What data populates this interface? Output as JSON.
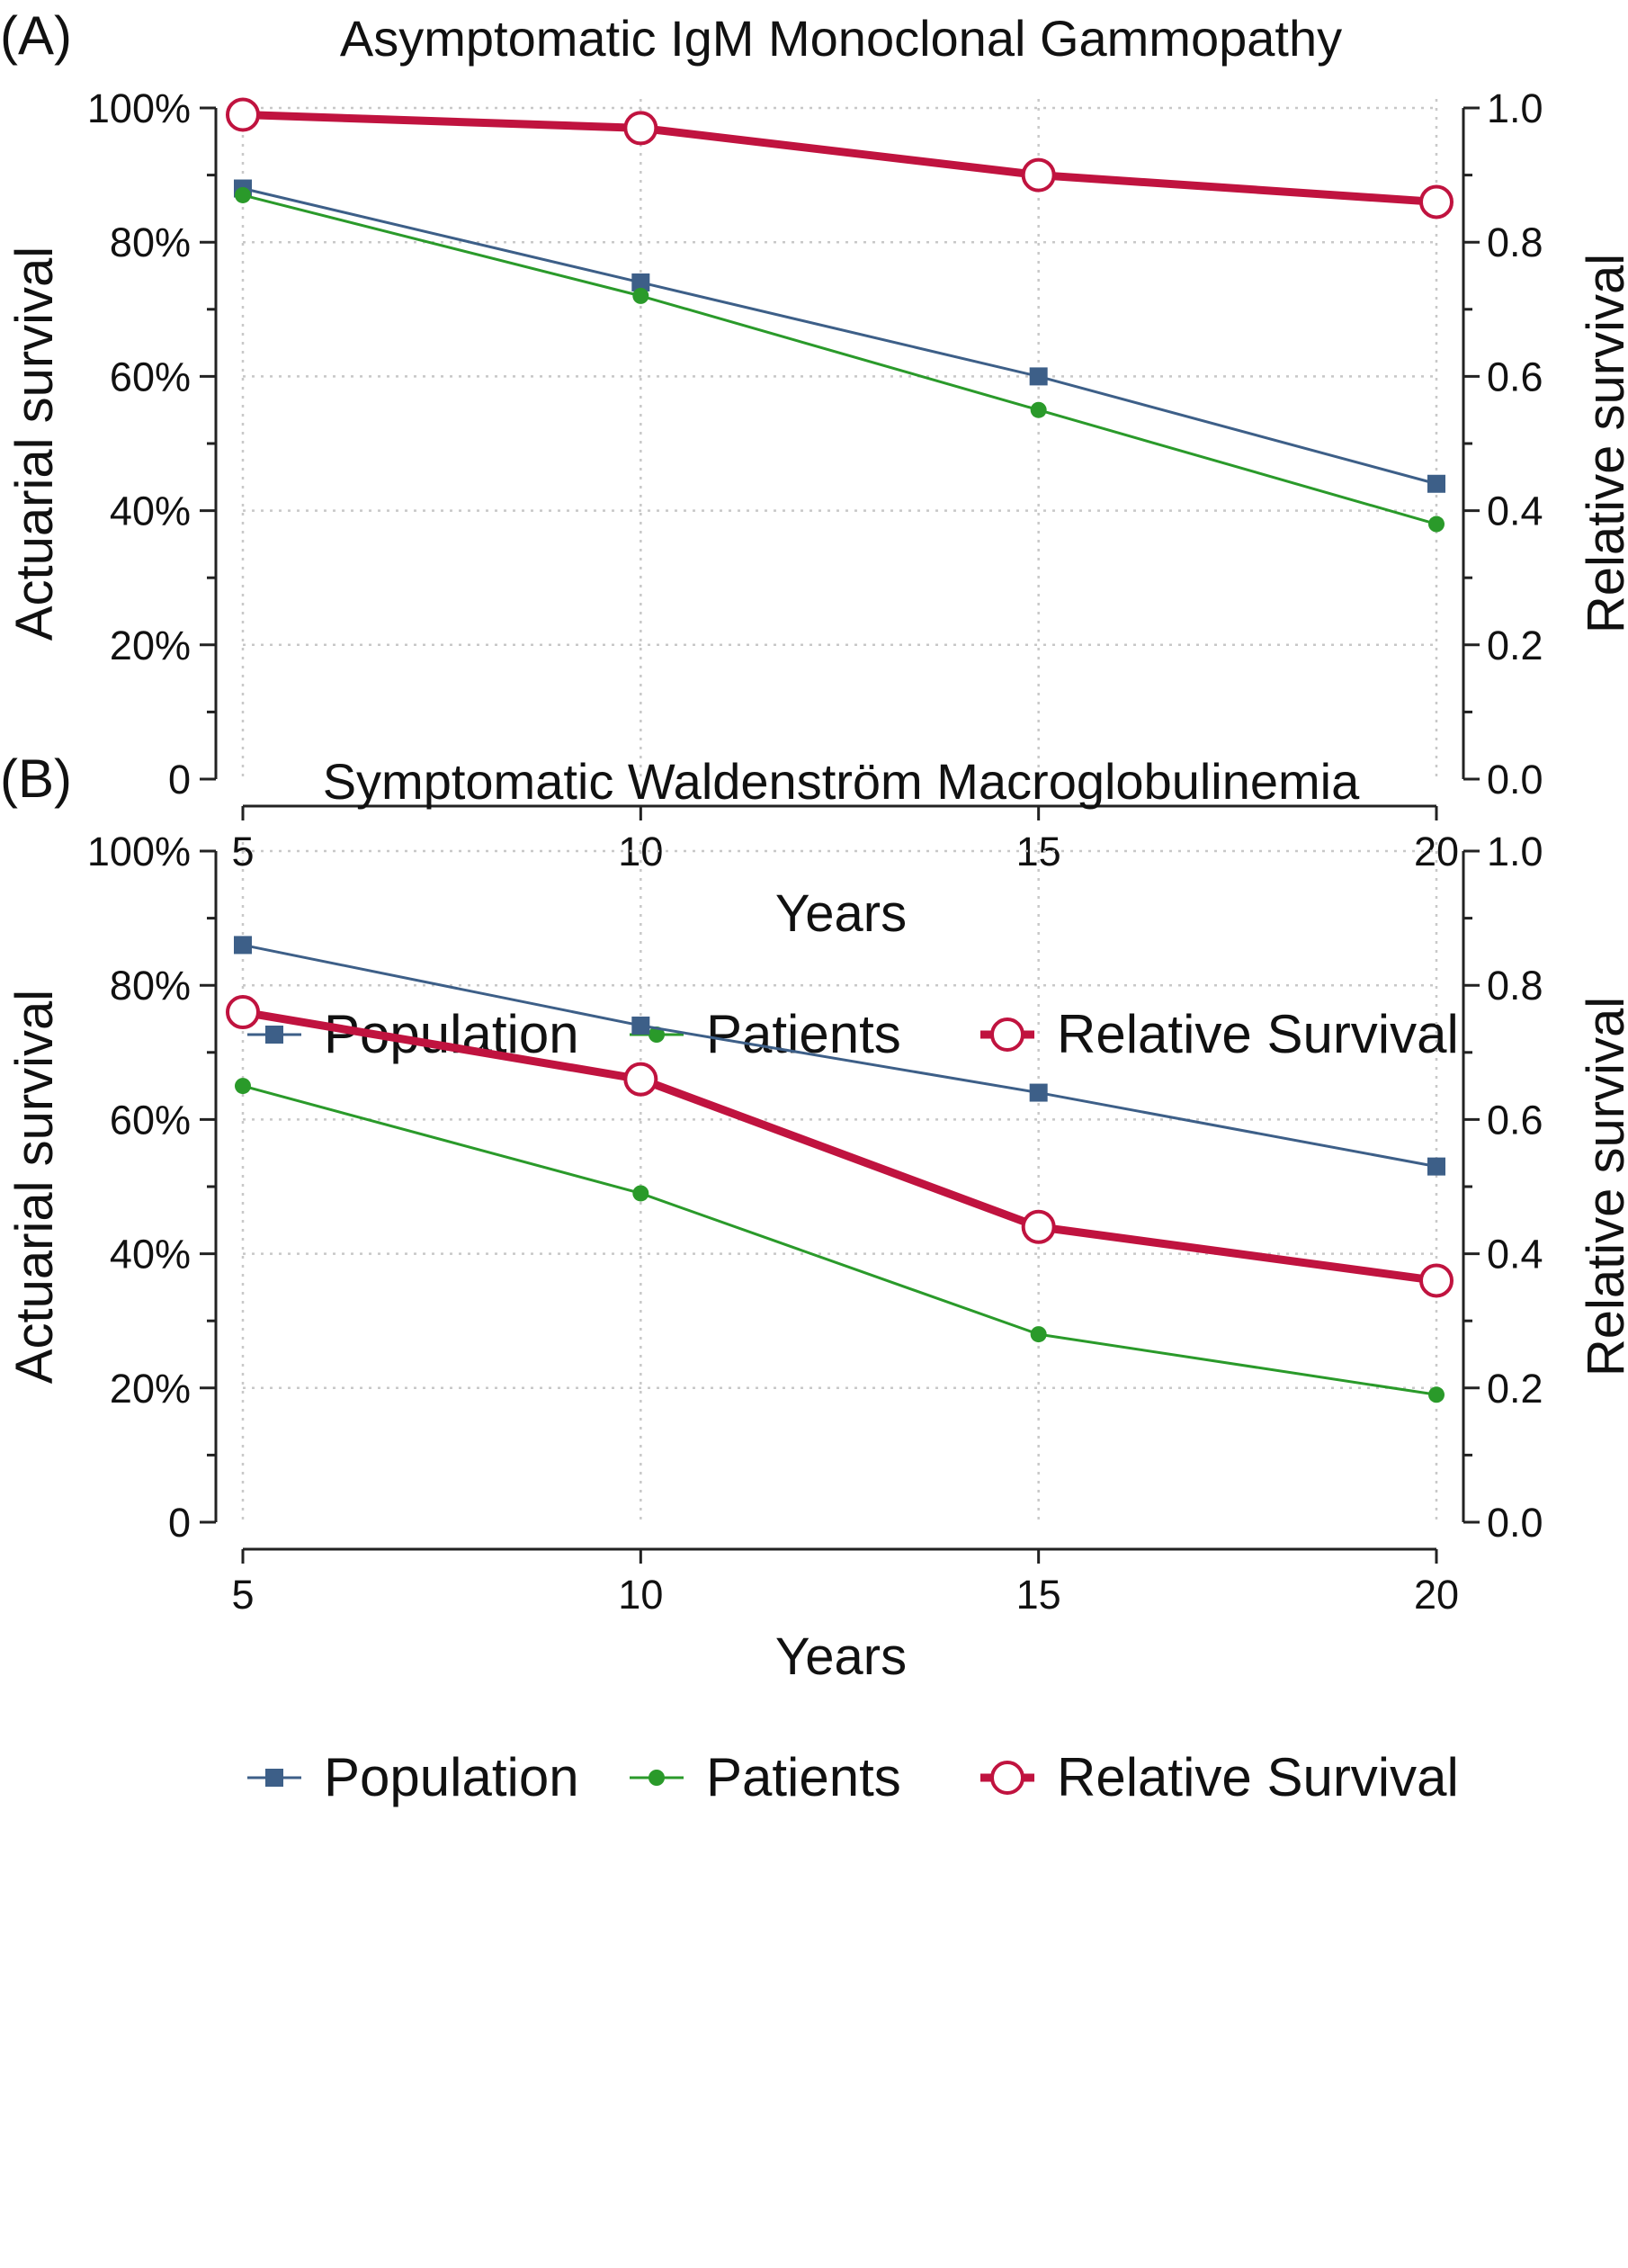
{
  "chart_data": [
    {
      "type": "line",
      "panel_label": "(A)",
      "title": "Asymptomatic IgM Monoclonal Gammopathy",
      "xlabel": "Years",
      "ylabel": "Actuarial survival",
      "y2label": "Relative survival",
      "x": [
        5,
        10,
        15,
        20
      ],
      "x_ticks": [
        "5",
        "10",
        "15",
        "20"
      ],
      "xlim": [
        5,
        20
      ],
      "ylim": [
        0,
        100
      ],
      "y_ticks": [
        "0",
        "20%",
        "40%",
        "60%",
        "80%",
        "100%"
      ],
      "y2lim": [
        0,
        1
      ],
      "y2_ticks": [
        "0.0",
        "0.2",
        "0.4",
        "0.6",
        "0.8",
        "1.0"
      ],
      "grid": true,
      "legend_position": "bottom",
      "series": [
        {
          "name": "Population",
          "axis": "left",
          "values": [
            88,
            74,
            60,
            44
          ],
          "color": "#3d5f88",
          "marker": "square"
        },
        {
          "name": "Patients",
          "axis": "left",
          "values": [
            87,
            72,
            55,
            38
          ],
          "color": "#2a9a2a",
          "marker": "dot"
        },
        {
          "name": "Relative Survival",
          "axis": "right",
          "values": [
            0.99,
            0.97,
            0.9,
            0.86
          ],
          "color": "#c0133f",
          "marker": "open-circle"
        }
      ]
    },
    {
      "type": "line",
      "panel_label": "(B)",
      "title": "Symptomatic Waldenström Macroglobulinemia",
      "xlabel": "Years",
      "ylabel": "Actuarial survival",
      "y2label": "Relative survival",
      "x": [
        5,
        10,
        15,
        20
      ],
      "x_ticks": [
        "5",
        "10",
        "15",
        "20"
      ],
      "xlim": [
        5,
        20
      ],
      "ylim": [
        0,
        100
      ],
      "y_ticks": [
        "0",
        "20%",
        "40%",
        "60%",
        "80%",
        "100%"
      ],
      "y2lim": [
        0,
        1
      ],
      "y2_ticks": [
        "0.0",
        "0.2",
        "0.4",
        "0.6",
        "0.8",
        "1.0"
      ],
      "grid": true,
      "legend_position": "bottom",
      "series": [
        {
          "name": "Population",
          "axis": "left",
          "values": [
            86,
            74,
            64,
            53
          ],
          "color": "#3d5f88",
          "marker": "square"
        },
        {
          "name": "Patients",
          "axis": "left",
          "values": [
            65,
            49,
            28,
            19
          ],
          "color": "#2a9a2a",
          "marker": "dot"
        },
        {
          "name": "Relative Survival",
          "axis": "right",
          "values": [
            0.76,
            0.66,
            0.44,
            0.36
          ],
          "color": "#c0133f",
          "marker": "open-circle"
        }
      ]
    }
  ]
}
